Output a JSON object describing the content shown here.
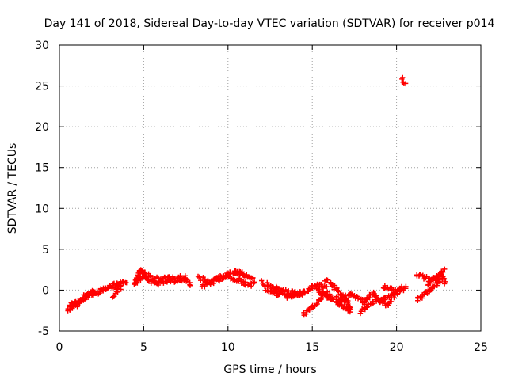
{
  "chart_data": {
    "type": "scatter",
    "title": "Day 141 of 2018, Sidereal Day-to-day VTEC variation (SDTVAR) for receiver p014",
    "xlabel": "GPS time / hours",
    "ylabel": "SDTVAR / TECUs",
    "xlim": [
      0,
      25
    ],
    "ylim": [
      -5,
      30
    ],
    "xticks": [
      0,
      5,
      10,
      15,
      20,
      25
    ],
    "yticks": [
      -5,
      0,
      5,
      10,
      15,
      20,
      25,
      30
    ],
    "grid": true,
    "marker": "+",
    "color": "#ff0000",
    "series": [
      {
        "name": "SDTVAR",
        "segments": [
          {
            "x": [
              0.5,
              0.8,
              1.0,
              1.3,
              1.6,
              1.9,
              2.2,
              2.5,
              2.8,
              3.1,
              3.3,
              3.6,
              3.8,
              4.0
            ],
            "y": [
              -2.5,
              -2.1,
              -1.8,
              -1.3,
              -0.9,
              -0.6,
              -0.3,
              0.0,
              0.3,
              0.4,
              0.6,
              0.7,
              0.9,
              1.1
            ]
          },
          {
            "x": [
              0.6,
              0.9,
              1.2,
              1.5,
              1.8,
              2.1
            ],
            "y": [
              -2.0,
              -1.5,
              -1.2,
              -0.7,
              -0.4,
              -0.2
            ]
          },
          {
            "x": [
              3.2,
              3.4,
              3.5,
              3.7
            ],
            "y": [
              -0.8,
              -0.2,
              0.5,
              0.2
            ]
          },
          {
            "x": [
              4.4,
              4.6,
              4.8,
              5.0,
              5.3,
              5.6
            ],
            "y": [
              0.5,
              1.2,
              2.5,
              2.2,
              1.8,
              1.4
            ]
          },
          {
            "x": [
              4.5,
              4.8,
              5.1,
              5.4,
              5.8,
              6.2,
              6.6,
              7.0,
              7.4,
              7.8
            ],
            "y": [
              1.0,
              1.3,
              1.6,
              1.1,
              0.8,
              1.0,
              1.2,
              1.0,
              1.3,
              0.7
            ]
          },
          {
            "x": [
              5.6,
              6.0,
              6.5,
              7.0,
              7.5
            ],
            "y": [
              1.5,
              1.3,
              1.4,
              1.5,
              1.6
            ]
          },
          {
            "x": [
              8.2,
              8.6,
              9.0,
              9.4,
              9.8,
              10.2,
              10.6,
              11.0,
              11.5
            ],
            "y": [
              1.6,
              1.2,
              1.0,
              1.4,
              1.8,
              1.5,
              1.2,
              0.8,
              0.6
            ]
          },
          {
            "x": [
              8.5,
              9.0,
              9.5,
              10.0,
              10.5,
              11.0
            ],
            "y": [
              0.5,
              0.9,
              1.3,
              2.0,
              2.2,
              1.6
            ]
          },
          {
            "x": [
              10.4,
              10.8,
              11.2,
              11.6
            ],
            "y": [
              2.3,
              2.0,
              1.6,
              1.2
            ]
          },
          {
            "x": [
              12.0,
              12.4,
              12.8,
              13.2,
              13.6,
              14.0
            ],
            "y": [
              1.0,
              0.6,
              0.2,
              0.0,
              -0.3,
              -0.1
            ]
          },
          {
            "x": [
              12.2,
              12.6,
              13.0,
              13.5,
              14.0,
              14.5
            ],
            "y": [
              0.2,
              -0.1,
              -0.5,
              -0.8,
              -0.6,
              -0.3
            ]
          },
          {
            "x": [
              13.8,
              14.2,
              14.6,
              15.0,
              15.4,
              15.8
            ],
            "y": [
              -0.8,
              -0.5,
              -0.2,
              0.4,
              0.6,
              0.3
            ]
          },
          {
            "x": [
              14.5,
              15.0,
              15.5,
              16.0
            ],
            "y": [
              -3.0,
              -2.2,
              -1.0,
              -0.3
            ]
          },
          {
            "x": [
              15.2,
              15.6,
              16.0,
              16.4,
              16.8,
              17.2
            ],
            "y": [
              0.2,
              -0.4,
              -0.9,
              -1.4,
              -1.9,
              -2.4
            ]
          },
          {
            "x": [
              15.8,
              16.2,
              16.6,
              17.0,
              17.3
            ],
            "y": [
              1.3,
              0.6,
              -0.3,
              -1.3,
              -2.6
            ]
          },
          {
            "x": [
              16.4,
              16.8,
              17.2,
              17.6,
              18.0
            ],
            "y": [
              -1.0,
              -1.2,
              -0.6,
              -0.8,
              -1.4
            ]
          },
          {
            "x": [
              18.0,
              18.3,
              18.6,
              19.0,
              19.4,
              19.8,
              20.2,
              20.6
            ],
            "y": [
              -1.6,
              -1.0,
              -0.4,
              -1.4,
              -0.9,
              -0.6,
              0.0,
              0.3
            ]
          },
          {
            "x": [
              17.8,
              18.2,
              18.6,
              19.0,
              19.4,
              19.8
            ],
            "y": [
              -2.8,
              -2.2,
              -1.6,
              -1.2,
              -1.8,
              -1.0
            ]
          },
          {
            "x": [
              19.2,
              19.6,
              20.0,
              20.4
            ],
            "y": [
              0.4,
              0.2,
              -0.2,
              0.3
            ]
          },
          {
            "x": [
              20.3,
              20.5
            ],
            "y": [
              25.8,
              25.3
            ]
          },
          {
            "x": [
              21.2,
              21.6,
              22.0,
              22.4,
              22.8
            ],
            "y": [
              -1.3,
              -0.6,
              0.2,
              0.8,
              1.6
            ]
          },
          {
            "x": [
              21.2,
              21.6,
              22.0,
              22.4,
              22.8
            ],
            "y": [
              2.0,
              1.6,
              1.2,
              1.6,
              2.5
            ]
          },
          {
            "x": [
              21.8,
              22.2,
              22.6,
              22.9
            ],
            "y": [
              0.8,
              1.2,
              1.8,
              1.0
            ]
          }
        ]
      }
    ]
  }
}
